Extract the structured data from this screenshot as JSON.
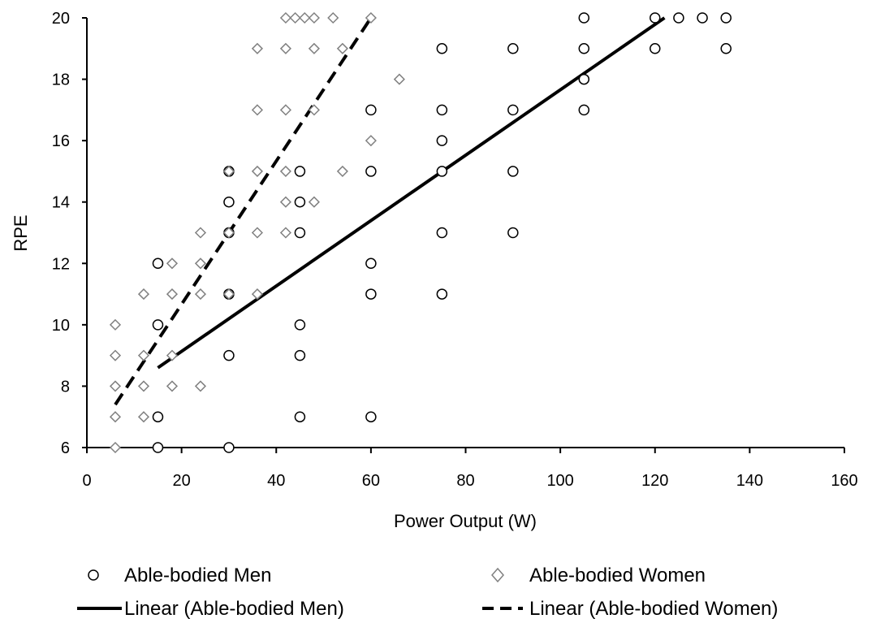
{
  "chart_data": {
    "type": "scatter",
    "xlabel": "Power Output (W)",
    "ylabel": "RPE",
    "xlim": [
      0,
      160
    ],
    "ylim": [
      6,
      20
    ],
    "xticks": [
      0,
      20,
      40,
      60,
      80,
      100,
      120,
      140,
      160
    ],
    "yticks": [
      6,
      8,
      10,
      12,
      14,
      16,
      18,
      20
    ],
    "grid": false,
    "legend_position": "bottom",
    "series": [
      {
        "name": "Able-bodied Men",
        "marker": "circle",
        "color": "#000000",
        "points": [
          [
            15,
            6
          ],
          [
            15,
            7
          ],
          [
            15,
            10
          ],
          [
            15,
            12
          ],
          [
            30,
            6
          ],
          [
            30,
            9
          ],
          [
            30,
            11
          ],
          [
            30,
            13
          ],
          [
            30,
            14
          ],
          [
            30,
            15
          ],
          [
            45,
            7
          ],
          [
            45,
            9
          ],
          [
            45,
            10
          ],
          [
            45,
            13
          ],
          [
            45,
            14
          ],
          [
            45,
            15
          ],
          [
            60,
            7
          ],
          [
            60,
            11
          ],
          [
            60,
            12
          ],
          [
            60,
            15
          ],
          [
            60,
            17
          ],
          [
            75,
            11
          ],
          [
            75,
            13
          ],
          [
            75,
            15
          ],
          [
            75,
            16
          ],
          [
            75,
            17
          ],
          [
            75,
            19
          ],
          [
            90,
            13
          ],
          [
            90,
            15
          ],
          [
            90,
            17
          ],
          [
            90,
            19
          ],
          [
            105,
            17
          ],
          [
            105,
            18
          ],
          [
            105,
            19
          ],
          [
            105,
            20
          ],
          [
            120,
            19
          ],
          [
            120,
            20
          ],
          [
            125,
            20
          ],
          [
            130,
            20
          ],
          [
            135,
            19
          ],
          [
            135,
            20
          ]
        ]
      },
      {
        "name": "Able-bodied Women",
        "marker": "diamond",
        "color": "#808080",
        "points": [
          [
            6,
            6
          ],
          [
            6,
            7
          ],
          [
            6,
            8
          ],
          [
            6,
            9
          ],
          [
            6,
            10
          ],
          [
            12,
            7
          ],
          [
            12,
            8
          ],
          [
            12,
            9
          ],
          [
            12,
            11
          ],
          [
            18,
            8
          ],
          [
            18,
            9
          ],
          [
            18,
            11
          ],
          [
            18,
            12
          ],
          [
            24,
            8
          ],
          [
            24,
            11
          ],
          [
            24,
            12
          ],
          [
            24,
            13
          ],
          [
            30,
            11
          ],
          [
            30,
            13
          ],
          [
            30,
            15
          ],
          [
            36,
            11
          ],
          [
            36,
            13
          ],
          [
            36,
            15
          ],
          [
            36,
            17
          ],
          [
            36,
            19
          ],
          [
            42,
            13
          ],
          [
            42,
            14
          ],
          [
            42,
            15
          ],
          [
            42,
            17
          ],
          [
            42,
            19
          ],
          [
            42,
            20
          ],
          [
            44,
            20
          ],
          [
            46,
            20
          ],
          [
            48,
            14
          ],
          [
            48,
            17
          ],
          [
            48,
            19
          ],
          [
            48,
            20
          ],
          [
            52,
            20
          ],
          [
            54,
            15
          ],
          [
            54,
            19
          ],
          [
            60,
            16
          ],
          [
            60,
            20
          ],
          [
            66,
            18
          ]
        ]
      }
    ],
    "trendlines": [
      {
        "name": "Linear (Able-bodied Men)",
        "style": "solid",
        "color": "#000000",
        "x": [
          15,
          122
        ],
        "y": [
          8.6,
          20
        ]
      },
      {
        "name": "Linear (Able-bodied Women)",
        "style": "dashed",
        "color": "#000000",
        "x": [
          6,
          60
        ],
        "y": [
          7.4,
          20
        ]
      }
    ]
  }
}
